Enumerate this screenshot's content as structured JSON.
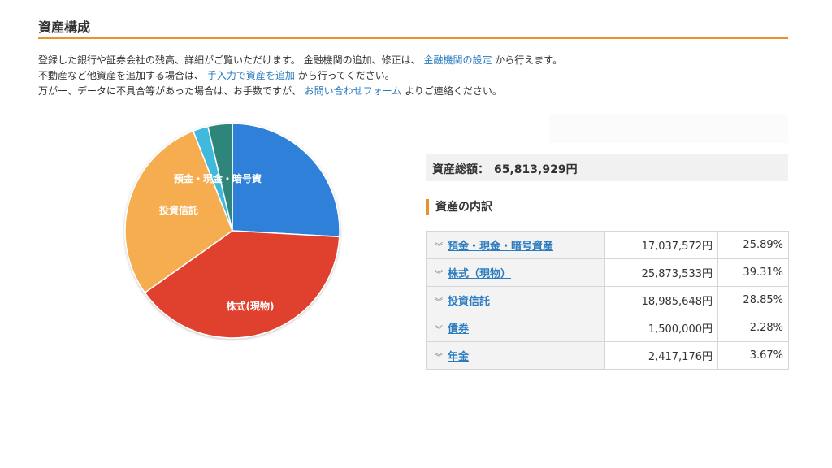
{
  "header": {
    "title": "資産構成"
  },
  "description": {
    "line1": {
      "before": "登録した銀行や証券会社の残高、詳細がご覧いただけます。 金融機関の追加、修正は、",
      "link": "金融機関の設定",
      "after": "から行えます。"
    },
    "line2": {
      "before": "不動産など他資産を追加する場合は、",
      "link": "手入力で資産を追加",
      "after": "から行ってください。"
    },
    "line3": {
      "before": "万が一、データに不具合等があった場合は、お手数ですが、",
      "link": "お問い合わせフォーム",
      "after": "よりご連絡ください。"
    }
  },
  "total": {
    "label": "資産総額：",
    "value": "65,813,929円"
  },
  "breakdown": {
    "heading": "資産の内訳",
    "rows": [
      {
        "name": "預金・現金・暗号資産",
        "amount": "17,037,572円",
        "percent": "25.89%"
      },
      {
        "name": "株式（現物）",
        "amount": "25,873,533円",
        "percent": "39.31%"
      },
      {
        "name": "投資信託",
        "amount": "18,985,648円",
        "percent": "28.85%"
      },
      {
        "name": "債券",
        "amount": "1,500,000円",
        "percent": "2.28%"
      },
      {
        "name": "年金",
        "amount": "2,417,176円",
        "percent": "3.67%"
      }
    ]
  },
  "chart_data": {
    "type": "pie",
    "categories": [
      "預金・現金・暗号資産",
      "株式(現物)",
      "投資信託",
      "債券",
      "年金"
    ],
    "values": [
      25.89,
      39.31,
      28.85,
      2.28,
      3.67
    ],
    "slice_labels": [
      "預金・現金・暗号資",
      "株式(現物)",
      "投資信託",
      "",
      ""
    ],
    "colors": [
      "#2f80d8",
      "#e0402e",
      "#f6ad4f",
      "#3fb9dc",
      "#2f857a"
    ]
  },
  "icons": {
    "row_expand": "chevron-double-down-icon"
  }
}
